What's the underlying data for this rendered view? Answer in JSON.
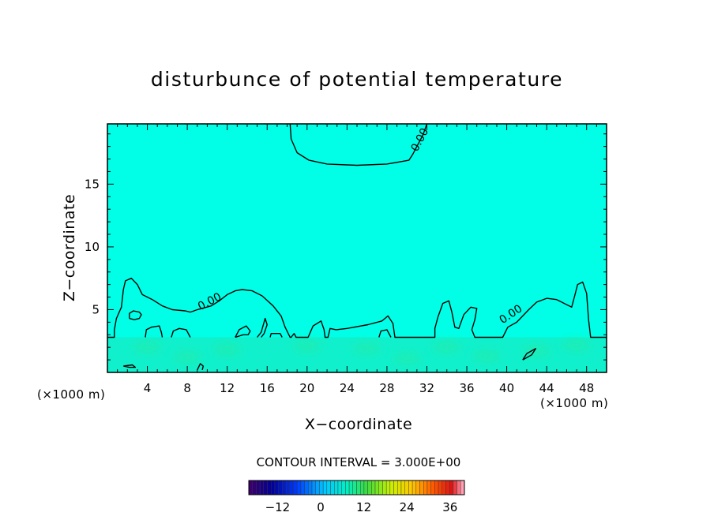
{
  "chart_data": {
    "type": "contour",
    "title": "disturbunce of potential temperature",
    "xlabel": "X−coordinate",
    "ylabel": "Z−coordinate",
    "x_unit_left": "(×1000 m)",
    "x_unit_right": "(×1000 m)",
    "x_ticks": [
      4,
      8,
      12,
      16,
      20,
      24,
      28,
      32,
      36,
      40,
      44,
      48
    ],
    "y_ticks": [
      5,
      10,
      15
    ],
    "xlim": [
      0,
      50
    ],
    "ylim": [
      0,
      19.8
    ],
    "contour_interval_label": "CONTOUR INTERVAL = 3.000E+00",
    "field_color": "#00ffe6",
    "surface_color": "#10f0cc",
    "colorbar": {
      "range": [
        -20,
        40
      ],
      "tick_values": [
        -12,
        0,
        12,
        24,
        36
      ],
      "tick_labels": [
        "−12",
        "0",
        "12",
        "24",
        "36"
      ]
    },
    "contour_labels": [
      {
        "text": "0.00",
        "x": 31.6,
        "y": 18.4
      },
      {
        "text": "0.00",
        "x": 10.4,
        "y": 5.4
      },
      {
        "text": "0.00",
        "x": 40.6,
        "y": 4.4
      }
    ],
    "contours": [
      [
        [
          18.3,
          19.8
        ],
        [
          18.4,
          18.6
        ],
        [
          19.0,
          17.5
        ],
        [
          20.2,
          16.9
        ],
        [
          22.0,
          16.6
        ],
        [
          25.0,
          16.5
        ],
        [
          28.0,
          16.6
        ],
        [
          30.2,
          16.9
        ],
        [
          30.6,
          17.4
        ],
        [
          31.0,
          18.0
        ],
        [
          31.6,
          18.9
        ],
        [
          32.0,
          19.8
        ]
      ],
      [
        [
          0,
          2.8
        ],
        [
          0.7,
          2.8
        ],
        [
          0.7,
          3.4
        ],
        [
          0.9,
          4.3
        ],
        [
          1.4,
          5.2
        ],
        [
          1.6,
          6.6
        ],
        [
          1.8,
          7.3
        ],
        [
          2.4,
          7.5
        ],
        [
          3.0,
          7.0
        ],
        [
          3.5,
          6.2
        ],
        [
          4.5,
          5.8
        ],
        [
          5.5,
          5.3
        ],
        [
          6.5,
          5.0
        ],
        [
          7.8,
          4.9
        ],
        [
          8.3,
          4.8
        ],
        [
          9.0,
          5.0
        ],
        [
          10.4,
          5.3
        ],
        [
          11.2,
          5.7
        ],
        [
          12.0,
          6.2
        ],
        [
          12.8,
          6.5
        ],
        [
          13.5,
          6.6
        ],
        [
          14.5,
          6.5
        ],
        [
          15.5,
          6.1
        ],
        [
          16.6,
          5.3
        ],
        [
          17.4,
          4.5
        ],
        [
          17.8,
          3.6
        ],
        [
          18.3,
          2.8
        ],
        [
          18.4,
          2.8
        ],
        [
          18.7,
          3.1
        ],
        [
          18.9,
          2.8
        ],
        [
          20.1,
          2.8
        ],
        [
          20.6,
          3.7
        ],
        [
          21.4,
          4.1
        ],
        [
          21.7,
          3.4
        ],
        [
          21.8,
          2.8
        ],
        [
          22.1,
          2.8
        ],
        [
          22.3,
          3.5
        ],
        [
          22.9,
          3.4
        ],
        [
          24.0,
          3.5
        ],
        [
          26.1,
          3.8
        ],
        [
          27.5,
          4.1
        ],
        [
          28.1,
          4.5
        ],
        [
          28.6,
          3.9
        ],
        [
          28.8,
          2.8
        ],
        [
          32.8,
          2.8
        ],
        [
          32.8,
          3.5
        ],
        [
          33.1,
          4.4
        ],
        [
          33.6,
          5.5
        ],
        [
          34.2,
          5.7
        ],
        [
          34.5,
          4.8
        ],
        [
          34.8,
          3.6
        ],
        [
          35.2,
          3.5
        ],
        [
          35.7,
          4.6
        ],
        [
          36.4,
          5.2
        ],
        [
          37.0,
          5.1
        ],
        [
          36.8,
          4.2
        ],
        [
          36.5,
          3.4
        ],
        [
          36.8,
          2.8
        ],
        [
          39.6,
          2.8
        ],
        [
          40.1,
          3.6
        ],
        [
          41.0,
          4.0
        ],
        [
          42.2,
          5.0
        ],
        [
          43.0,
          5.6
        ],
        [
          44.0,
          5.9
        ],
        [
          45.0,
          5.8
        ],
        [
          46.0,
          5.4
        ],
        [
          46.5,
          5.2
        ],
        [
          46.8,
          6.1
        ],
        [
          47.1,
          7.0
        ],
        [
          47.6,
          7.2
        ],
        [
          48.0,
          6.3
        ],
        [
          48.2,
          4.2
        ],
        [
          48.4,
          2.8
        ],
        [
          50,
          2.8
        ]
      ],
      [
        [
          2.2,
          4.3
        ],
        [
          2.7,
          4.2
        ],
        [
          3.2,
          4.3
        ],
        [
          3.4,
          4.6
        ],
        [
          3.2,
          4.8
        ],
        [
          2.6,
          4.9
        ],
        [
          2.2,
          4.7
        ],
        [
          2.2,
          4.3
        ]
      ],
      [
        [
          3.8,
          2.8
        ],
        [
          3.9,
          3.4
        ],
        [
          4.4,
          3.6
        ],
        [
          5.2,
          3.7
        ],
        [
          5.4,
          3.2
        ],
        [
          5.5,
          2.8
        ]
      ],
      [
        [
          6.4,
          2.8
        ],
        [
          6.6,
          3.3
        ],
        [
          7.2,
          3.5
        ],
        [
          7.9,
          3.4
        ],
        [
          8.3,
          2.8
        ]
      ],
      [
        [
          12.8,
          2.8
        ],
        [
          13.2,
          3.4
        ],
        [
          13.9,
          3.7
        ],
        [
          14.3,
          3.3
        ],
        [
          14.1,
          3.0
        ],
        [
          13.6,
          3.0
        ],
        [
          12.8,
          2.8
        ]
      ],
      [
        [
          15.0,
          2.8
        ],
        [
          15.4,
          3.2
        ],
        [
          15.8,
          4.3
        ],
        [
          16.0,
          3.8
        ],
        [
          15.7,
          3.1
        ],
        [
          15.4,
          2.8
        ]
      ],
      [
        [
          16.3,
          2.8
        ],
        [
          16.4,
          3.1
        ],
        [
          17.3,
          3.1
        ],
        [
          17.5,
          2.8
        ]
      ],
      [
        [
          27.2,
          2.8
        ],
        [
          27.4,
          3.3
        ],
        [
          28.0,
          3.4
        ],
        [
          28.4,
          2.8
        ]
      ],
      [
        [
          41.6,
          1.0
        ],
        [
          42.0,
          1.5
        ],
        [
          42.9,
          1.9
        ],
        [
          42.5,
          1.4
        ],
        [
          41.6,
          1.0
        ]
      ],
      [
        [
          1.6,
          0.5
        ],
        [
          2.2,
          0.4
        ],
        [
          2.8,
          0.4
        ],
        [
          2.5,
          0.6
        ],
        [
          1.6,
          0.5
        ]
      ],
      [
        [
          9.0,
          0.2
        ],
        [
          9.3,
          0.7
        ],
        [
          9.6,
          0.5
        ],
        [
          9.5,
          0.2
        ]
      ]
    ]
  }
}
